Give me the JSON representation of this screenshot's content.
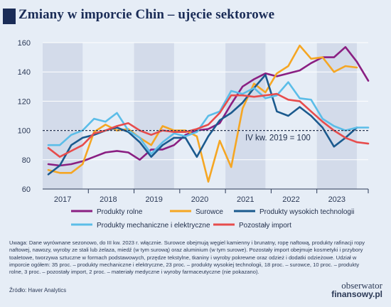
{
  "title": "Zmiany w imporcie Chin – ujęcie sektorowe",
  "note": "Uwaga: Dane wyrównane sezonowo, do III kw. 2023 r. włącznie. Surowce obejmują węgiel kamienny i brunatny, ropę naftową, produkty rafinacji ropy naftowej, nawozy, wyroby ze stali lub żelaza, miedź (w tym surową) oraz aluminium (w tym surowe). Pozostały import obejmuje kosmetyki i przybory toaletowe, tworzywa sztuczne w formach podstawowych, przędze tekstylne, tkaniny i wyroby pokrewne oraz odzież i dodatki odzieżowe. Udział w imporcie ogółem: 35 proc. – produkty mechaniczne i elektryczne, 23 proc. – produkty wysokiej technologii, 18 proc. – surowce, 10 proc. – produkty rolne, 3 proc. – pozostały import, 2 proc. – materiały medyczne i wyroby farmaceutyczne (nie pokazano).",
  "source": "Źródło: Haver Analytics",
  "brand": {
    "line1": "obserwator",
    "line2": "finansowy.pl"
  },
  "colors": {
    "background": "#e6edf6",
    "shade": "#d3dbea",
    "title": "#1a2c57",
    "rolne": "#8a1f82",
    "surowce": "#f5a623",
    "wysokie": "#1b5a8e",
    "mechaniczne": "#5bbde8",
    "pozostaly": "#e74c4c"
  },
  "chart_data": {
    "type": "line",
    "x_tick_labels": [
      "2017",
      "2018",
      "2019",
      "2020",
      "2021",
      "2022",
      "2023"
    ],
    "xlim": [
      2016.625,
      2023.75
    ],
    "ylim": [
      60,
      160
    ],
    "y_ticks": [
      60,
      80,
      100,
      120,
      140,
      160
    ],
    "shaded_years": [
      2017,
      2019,
      2021,
      2023
    ],
    "reference_line": {
      "y": 100,
      "label": "IV kw. 2019 = 100"
    },
    "series": [
      {
        "name": "Produkty rolne",
        "color_key": "rolne",
        "x0": 2016.75,
        "dx": 0.25,
        "values": [
          77,
          76,
          77,
          79,
          82,
          85,
          86,
          85,
          80,
          87,
          87,
          90,
          97,
          100,
          101,
          105,
          118,
          130,
          135,
          139,
          137,
          139,
          141,
          146,
          150,
          150,
          157,
          147,
          134
        ]
      },
      {
        "name": "Surowce",
        "color_key": "surowce",
        "x0": 2016.75,
        "dx": 0.25,
        "values": [
          73,
          71,
          71,
          77,
          99,
          104,
          100,
          101,
          95,
          90,
          103,
          100,
          100,
          96,
          65,
          93,
          75,
          115,
          132,
          126,
          139,
          144,
          158,
          149,
          150,
          140,
          144,
          143
        ]
      },
      {
        "name": "Produkty wysokich technologii",
        "color_key": "wysokie",
        "x0": 2016.75,
        "dx": 0.25,
        "values": [
          70,
          76,
          90,
          95,
          97,
          100,
          102,
          99,
          92,
          82,
          90,
          95,
          95,
          82,
          96,
          107,
          112,
          119,
          129,
          138,
          113,
          110,
          116,
          110,
          102,
          89,
          95,
          102
        ]
      },
      {
        "name": "Produkty mechaniczne i elektryczne",
        "color_key": "mechaniczne",
        "x0": 2016.75,
        "dx": 0.25,
        "values": [
          90,
          90,
          97,
          100,
          108,
          106,
          112,
          100,
          95,
          84,
          92,
          98,
          96,
          99,
          110,
          113,
          127,
          125,
          129,
          122,
          124,
          133,
          122,
          121,
          108,
          103,
          100,
          102,
          102
        ]
      },
      {
        "name": "Pozostały import",
        "color_key": "pozostaly",
        "x0": 2016.75,
        "dx": 0.25,
        "values": [
          88,
          82,
          86,
          90,
          98,
          100,
          103,
          105,
          100,
          97,
          100,
          99,
          99,
          101,
          104,
          112,
          124,
          124,
          123,
          124,
          125,
          121,
          120,
          113,
          106,
          100,
          95,
          92,
          91
        ]
      }
    ],
    "legend": {
      "placement": "bottom",
      "rows": [
        [
          "Produkty rolne",
          "Surowce",
          "Produkty wysokich technologii"
        ],
        [
          "Produkty mechaniczne i elektryczne",
          "Pozostały import"
        ]
      ]
    }
  }
}
